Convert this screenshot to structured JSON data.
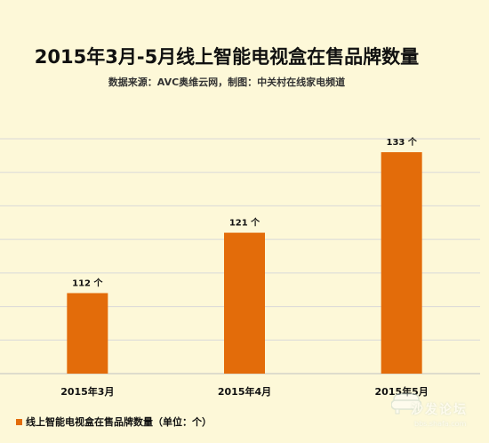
{
  "title": "2015年3月-5月线上智能电视盒在售品牌数量",
  "subtitle": "数据来源：AVC奥维云网，制图：中关村在线家电频道",
  "legend_label": "线上智能电视盒在售品牌数量（单位：个）",
  "watermark": {
    "text": "沙发论坛",
    "url": "bbs.shafa.com"
  },
  "colors": {
    "background": "#fdf8d8",
    "bar": "#e36c0a",
    "grid": "#d9d9d9"
  },
  "chart_data": {
    "type": "bar",
    "title": "2015年3月-5月线上智能电视盒在售品牌数量",
    "categories": [
      "2015年3月",
      "2015年4月",
      "2015年5月"
    ],
    "values": [
      112,
      121,
      133
    ],
    "data_labels": [
      "112 个",
      "121 个",
      "133 个"
    ],
    "ylim": [
      100,
      135
    ],
    "grid": true,
    "legend_position": "bottom-left",
    "series": [
      {
        "name": "线上智能电视盒在售品牌数量（单位：个）",
        "values": [
          112,
          121,
          133
        ]
      }
    ]
  }
}
